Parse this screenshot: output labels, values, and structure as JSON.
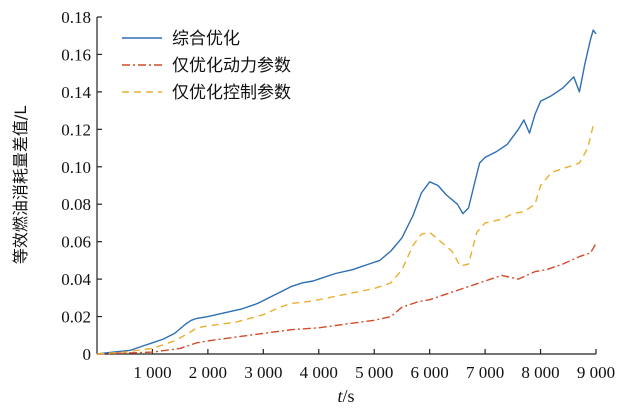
{
  "chart_data": {
    "type": "line",
    "xlabel_italic": "t",
    "xlabel_unit": "/s",
    "ylabel": "等效燃油消耗量差值/L",
    "xlim": [
      0,
      9000
    ],
    "ylim": [
      0,
      0.18
    ],
    "xticks": [
      1000,
      2000,
      3000,
      4000,
      5000,
      6000,
      7000,
      8000,
      9000
    ],
    "xtick_labels": [
      "1 000",
      "2 000",
      "3 000",
      "4 000",
      "5 000",
      "6 000",
      "7 000",
      "8 000",
      "9 000"
    ],
    "yticks": [
      0,
      0.02,
      0.04,
      0.06,
      0.08,
      0.1,
      0.12,
      0.14,
      0.16,
      0.18
    ],
    "ytick_labels": [
      "0",
      "0.02",
      "0.04",
      "0.06",
      "0.08",
      "0.10",
      "0.12",
      "0.14",
      "0.16",
      "0.18"
    ],
    "grid": false,
    "legend_position": "top-left",
    "series": [
      {
        "name": "综合优化",
        "color": "#2e6fb3",
        "dash": "solid",
        "x": [
          0,
          300,
          600,
          800,
          1000,
          1200,
          1400,
          1600,
          1700,
          1800,
          2000,
          2300,
          2600,
          2900,
          3100,
          3300,
          3500,
          3700,
          3900,
          4000,
          4300,
          4600,
          4900,
          5100,
          5300,
          5500,
          5700,
          5850,
          6000,
          6150,
          6300,
          6500,
          6600,
          6700,
          6800,
          6900,
          7000,
          7200,
          7400,
          7600,
          7700,
          7800,
          7900,
          8000,
          8200,
          8400,
          8500,
          8600,
          8700,
          8800,
          8900,
          8950,
          9000
        ],
        "y": [
          0,
          0.001,
          0.002,
          0.004,
          0.006,
          0.008,
          0.011,
          0.016,
          0.018,
          0.019,
          0.02,
          0.022,
          0.024,
          0.027,
          0.03,
          0.033,
          0.036,
          0.038,
          0.039,
          0.04,
          0.043,
          0.045,
          0.048,
          0.05,
          0.055,
          0.062,
          0.074,
          0.086,
          0.092,
          0.09,
          0.085,
          0.08,
          0.075,
          0.078,
          0.09,
          0.102,
          0.105,
          0.108,
          0.112,
          0.12,
          0.125,
          0.118,
          0.128,
          0.135,
          0.138,
          0.142,
          0.145,
          0.148,
          0.14,
          0.155,
          0.168,
          0.173,
          0.171
        ]
      },
      {
        "name": "仅优化动力参数",
        "color": "#d24b2a",
        "dash": "dashdot",
        "x": [
          0,
          500,
          1000,
          1500,
          1800,
          2000,
          2500,
          3000,
          3500,
          4000,
          4500,
          5000,
          5300,
          5500,
          5800,
          6000,
          6300,
          6600,
          6900,
          7000,
          7300,
          7600,
          7900,
          8100,
          8400,
          8700,
          8900,
          9000
        ],
        "y": [
          0,
          0.0005,
          0.001,
          0.003,
          0.006,
          0.007,
          0.009,
          0.011,
          0.013,
          0.014,
          0.016,
          0.018,
          0.02,
          0.025,
          0.028,
          0.029,
          0.032,
          0.035,
          0.038,
          0.039,
          0.042,
          0.04,
          0.044,
          0.045,
          0.048,
          0.052,
          0.054,
          0.059
        ]
      },
      {
        "name": "仅优化控制参数",
        "color": "#e8b030",
        "dash": "dashed",
        "x": [
          0,
          500,
          1000,
          1400,
          1700,
          1800,
          2000,
          2500,
          3000,
          3300,
          3500,
          3800,
          4000,
          4500,
          5000,
          5300,
          5500,
          5700,
          5850,
          6000,
          6200,
          6400,
          6550,
          6700,
          6850,
          7000,
          7300,
          7500,
          7700,
          7900,
          8000,
          8200,
          8500,
          8700,
          8850,
          8950,
          9000
        ],
        "y": [
          0,
          0.001,
          0.003,
          0.007,
          0.012,
          0.014,
          0.015,
          0.017,
          0.021,
          0.025,
          0.027,
          0.028,
          0.029,
          0.032,
          0.035,
          0.038,
          0.045,
          0.058,
          0.064,
          0.065,
          0.06,
          0.055,
          0.047,
          0.048,
          0.065,
          0.07,
          0.072,
          0.075,
          0.076,
          0.08,
          0.09,
          0.097,
          0.1,
          0.102,
          0.11,
          0.122,
          0.123
        ]
      }
    ]
  }
}
